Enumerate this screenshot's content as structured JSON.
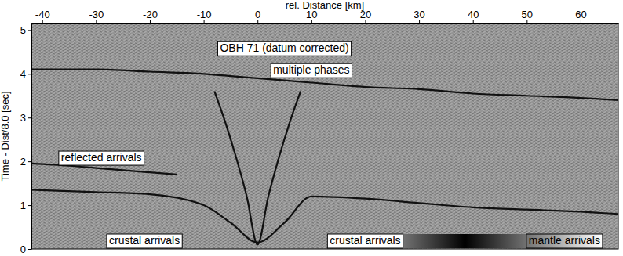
{
  "chart_data": {
    "type": "line",
    "xlabel": "rel. Distance [km]",
    "ylabel": "Time - Dist/8.0 [sec]",
    "xlim": [
      -42,
      67
    ],
    "xticks": [
      -40,
      -30,
      -20,
      -10,
      0,
      10,
      20,
      30,
      40,
      50,
      60
    ],
    "ylim": [
      0,
      5.15
    ],
    "yticks": [
      0,
      1,
      2,
      3,
      4,
      5
    ],
    "series": [
      {
        "color": "#111111",
        "line_style": "solid",
        "x": [
          -8,
          -6,
          -4,
          -2,
          0,
          2,
          4,
          6,
          8
        ],
        "values": [
          3.6,
          2.9,
          2.1,
          1.2,
          0.1,
          1.2,
          2.1,
          2.9,
          3.6
        ]
      },
      {
        "color": "#111111",
        "line_style": "solid",
        "x": [
          -42,
          -30,
          -20,
          -10,
          -5,
          0,
          5,
          10,
          20,
          30,
          40,
          50,
          60,
          67
        ],
        "values": [
          1.35,
          1.3,
          1.25,
          1.0,
          0.6,
          0.15,
          0.6,
          1.2,
          1.15,
          1.05,
          0.95,
          0.9,
          0.85,
          0.8
        ]
      },
      {
        "color": "#111111",
        "line_style": "solid",
        "x": [
          -42,
          -35,
          -30,
          -25,
          -20,
          -15
        ],
        "values": [
          1.95,
          1.9,
          1.85,
          1.8,
          1.75,
          1.7
        ]
      },
      {
        "color": "#111111",
        "line_style": "solid",
        "x": [
          -42,
          -30,
          -20,
          -10,
          -5,
          5,
          10,
          20,
          30,
          40,
          50,
          60,
          67
        ],
        "values": [
          4.1,
          4.1,
          4.05,
          4.0,
          3.95,
          3.85,
          3.8,
          3.7,
          3.65,
          3.55,
          3.5,
          3.45,
          3.4
        ]
      }
    ],
    "annotations": [
      {
        "text": "OBH 71 (datum corrected)",
        "x": 5,
        "y": 4.55
      },
      {
        "text": "multiple phases",
        "x": 10,
        "y": 4.05
      },
      {
        "text": "reflected arrivals",
        "x": -29,
        "y": 2.05
      },
      {
        "text": "crustal arrivals",
        "x": -21,
        "y": 0.15
      },
      {
        "text": "crustal arrivals",
        "x": 20,
        "y": 0.15
      },
      {
        "text": "mantle arrivals",
        "x": 57,
        "y": 0.15
      }
    ]
  }
}
